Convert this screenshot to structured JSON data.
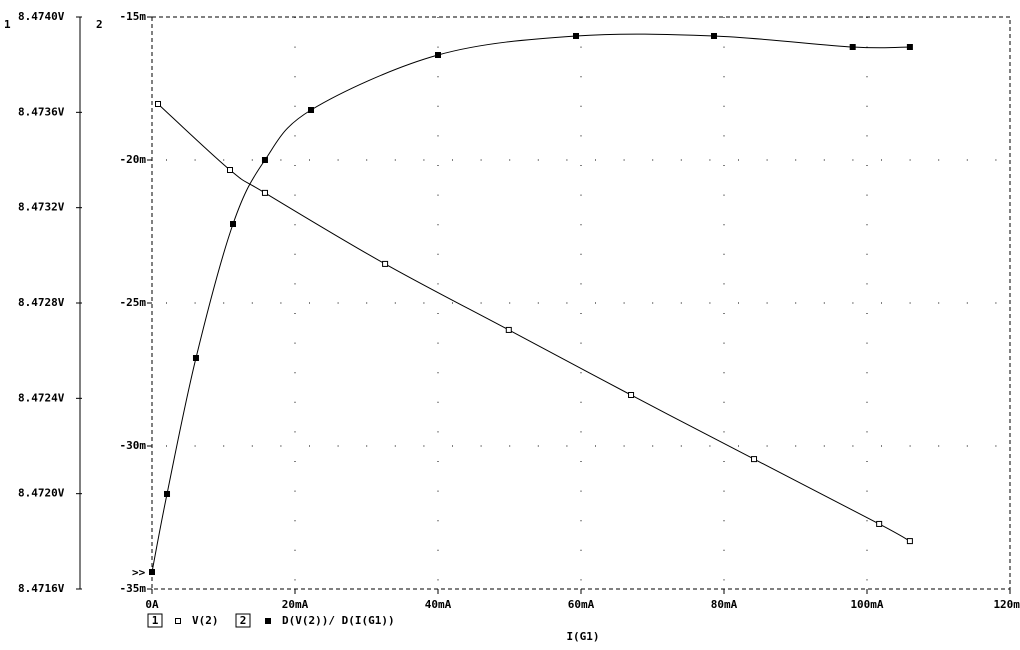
{
  "chart_data": {
    "type": "line",
    "xlabel": "I(G1)",
    "axis_labels": [
      "1",
      "2"
    ],
    "active_axis_marker": ">>",
    "grid": true,
    "xlim": [
      0,
      0.12
    ],
    "xticks": [
      {
        "value": 0,
        "label": "0A"
      },
      {
        "value": 0.02,
        "label": "20mA"
      },
      {
        "value": 0.04,
        "label": "40mA"
      },
      {
        "value": 0.06,
        "label": "60mA"
      },
      {
        "value": 0.08,
        "label": "80mA"
      },
      {
        "value": 0.1,
        "label": "100mA"
      },
      {
        "value": 0.12,
        "label": "120mA"
      }
    ],
    "ylim": [
      8.4716,
      8.474
    ],
    "yticks": [
      {
        "value": 8.4716,
        "label": "8.4716V"
      },
      {
        "value": 8.472,
        "label": "8.4720V"
      },
      {
        "value": 8.4724,
        "label": "8.4724V"
      },
      {
        "value": 8.4728,
        "label": "8.4728V"
      },
      {
        "value": 8.4732,
        "label": "8.4732V"
      },
      {
        "value": 8.4736,
        "label": "8.4736V"
      },
      {
        "value": 8.474,
        "label": "8.4740V"
      }
    ],
    "y2lim": [
      -0.035,
      -0.015
    ],
    "y2ticks": [
      {
        "value": -0.035,
        "label": "-35m"
      },
      {
        "value": -0.03,
        "label": "-30m"
      },
      {
        "value": -0.025,
        "label": "-25m"
      },
      {
        "value": -0.02,
        "label": "-20m"
      },
      {
        "value": -0.015,
        "label": "-15m"
      }
    ],
    "series": [
      {
        "name": "V(2)",
        "color": "#000000",
        "marker": "open",
        "axis": "y",
        "x": [
          0.00084,
          0.01091,
          0.0158,
          0.0326,
          0.0499,
          0.067,
          0.0842,
          0.1017,
          0.106
        ],
        "values": [
          8.473635,
          8.473358,
          8.473262,
          8.472964,
          8.472687,
          8.472414,
          8.472145,
          8.471873,
          8.471801
        ]
      },
      {
        "name": "D(V(2))/ D(I(G1))",
        "color": "#000000",
        "marker": "filled",
        "axis": "y2",
        "x": [
          0,
          0.0021,
          0.00615,
          0.01133,
          0.0158,
          0.02224,
          0.04,
          0.0593,
          0.0786,
          0.098,
          0.106
        ],
        "values": [
          -0.034406,
          -0.031678,
          -0.026923,
          -0.022238,
          -0.02,
          -0.018252,
          -0.016329,
          -0.015664,
          -0.015664,
          -0.016049,
          -0.016049
        ]
      }
    ]
  }
}
